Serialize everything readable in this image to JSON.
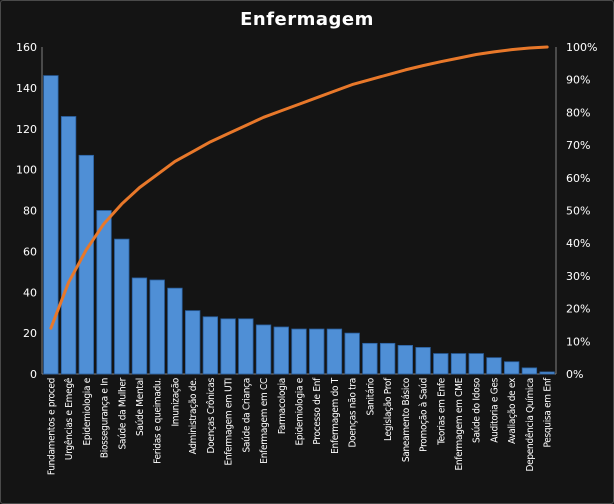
{
  "chart_data": {
    "type": "bar",
    "title": "Enfermagem",
    "categories": [
      "Fundamentos e proced",
      "Urgências e Emegê",
      "Epidemiologia e",
      "Biossegurança e In",
      "Saúde da Mulher",
      "Saúde Mental",
      "Feridas e queimadu.",
      "Imunização",
      "Administração de.",
      "Doenças Crônicas",
      "Enfermagem em UTI",
      "Saúde da Criança",
      "Enfermagem em CC",
      "Farmacologia",
      "Epidemiologia e",
      "Processo de Enf",
      "Enfermagem do T",
      "Doenças não tra",
      "Sanitário",
      "Legislação Prof",
      "Saneamento Básico",
      "Promoção à Saúd",
      "Teorias em Enfe",
      "Enfermagem em CME",
      "Saúde do Idoso",
      "Auditoria e Ges",
      "Avaliação de ex",
      "Dependência Química",
      "Pesquisa em Enf"
    ],
    "series": [
      {
        "type": "bar",
        "axis": "left",
        "color": "#4f8fd6",
        "values": [
          146,
          126,
          107,
          80,
          66,
          47,
          46,
          42,
          31,
          28,
          27,
          27,
          24,
          23,
          22,
          22,
          22,
          20,
          15,
          15,
          14,
          13,
          10,
          10,
          10,
          8,
          6,
          3,
          1
        ]
      },
      {
        "type": "line",
        "axis": "right",
        "color": "#e8782a",
        "values": [
          0.14,
          0.28,
          0.38,
          0.46,
          0.52,
          0.57,
          0.61,
          0.65,
          0.68,
          0.71,
          0.735,
          0.76,
          0.785,
          0.805,
          0.825,
          0.845,
          0.865,
          0.885,
          0.9,
          0.915,
          0.93,
          0.943,
          0.955,
          0.966,
          0.977,
          0.985,
          0.992,
          0.997,
          1.0
        ]
      }
    ],
    "ylim": [
      0,
      160
    ],
    "yticks": [
      "0",
      "20",
      "40",
      "60",
      "80",
      "100",
      "120",
      "140",
      "160"
    ],
    "y2lim": [
      0,
      1
    ],
    "y2ticks": [
      "0%",
      "10%",
      "20%",
      "30%",
      "40%",
      "50%",
      "60%",
      "70%",
      "80%",
      "90%",
      "100%"
    ],
    "grid": false,
    "legend": "none"
  }
}
